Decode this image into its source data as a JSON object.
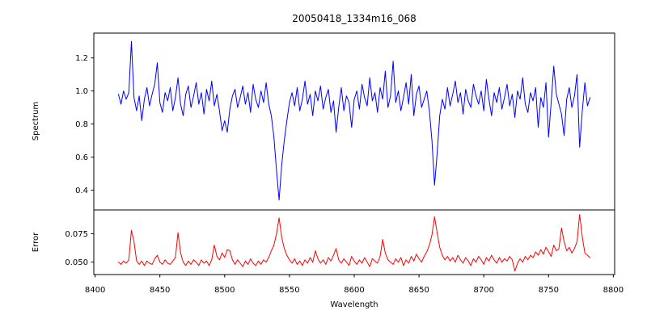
{
  "chart_data": {
    "type": "line",
    "title": "20050418_1334m16_068",
    "xlabel": "Wavelength",
    "background_color": "#ffffff",
    "axis_color": "#000000",
    "x_start": 8418,
    "x_step": 2,
    "n_points": 183,
    "xlim": [
      8399,
      8801
    ],
    "x_ticks": [
      8400,
      8450,
      8500,
      8550,
      8600,
      8650,
      8700,
      8750,
      8800
    ],
    "grid": false,
    "legend": "none",
    "panels": [
      {
        "name": "spectrum",
        "ylabel": "Spectrum",
        "color": "#0000ff",
        "ylim": [
          0.28,
          1.35
        ],
        "y_ticks": [
          0.4,
          0.6,
          0.8,
          1.0,
          1.2
        ],
        "y_tick_labels": [
          "0.4",
          "0.6",
          "0.8",
          "1.0",
          "1.2"
        ],
        "values": [
          0.98,
          0.92,
          1.0,
          0.95,
          0.99,
          1.3,
          0.96,
          0.88,
          0.97,
          0.82,
          0.95,
          1.02,
          0.91,
          0.98,
          1.04,
          1.17,
          0.93,
          0.87,
          0.99,
          0.94,
          1.02,
          0.88,
          0.96,
          1.08,
          0.92,
          0.85,
          0.98,
          1.03,
          0.9,
          0.97,
          1.05,
          0.92,
          0.99,
          0.86,
          1.01,
          0.94,
          1.06,
          0.91,
          0.98,
          0.88,
          0.76,
          0.82,
          0.75,
          0.89,
          0.97,
          1.01,
          0.9,
          0.96,
          1.03,
          0.92,
          0.99,
          0.87,
          1.04,
          0.95,
          0.9,
          1.0,
          0.93,
          1.05,
          0.92,
          0.85,
          0.72,
          0.52,
          0.34,
          0.55,
          0.7,
          0.82,
          0.93,
          0.99,
          0.91,
          1.02,
          0.88,
          0.95,
          1.06,
          0.92,
          0.98,
          0.85,
          1.0,
          0.94,
          1.03,
          0.89,
          0.96,
          1.01,
          0.87,
          0.94,
          0.75,
          0.9,
          1.02,
          0.88,
          0.97,
          0.93,
          0.78,
          0.95,
          1.0,
          0.89,
          1.04,
          0.96,
          0.91,
          1.08,
          0.94,
          0.99,
          0.87,
          1.02,
          0.95,
          1.12,
          0.9,
          0.97,
          1.18,
          0.93,
          1.0,
          0.88,
          0.96,
          1.05,
          0.92,
          1.1,
          0.85,
          0.98,
          1.03,
          0.9,
          0.95,
          1.0,
          0.88,
          0.7,
          0.43,
          0.62,
          0.85,
          0.95,
          0.89,
          1.02,
          0.91,
          0.98,
          1.06,
          0.93,
          0.99,
          0.86,
          1.01,
          0.94,
          0.9,
          1.04,
          0.97,
          0.92,
          1.0,
          0.88,
          1.07,
          0.95,
          0.85,
          0.99,
          0.93,
          1.02,
          0.89,
          0.96,
          1.04,
          0.91,
          0.98,
          0.84,
          1.0,
          0.95,
          1.08,
          0.92,
          0.87,
          0.99,
          0.94,
          1.02,
          0.78,
          0.96,
          0.9,
          1.05,
          0.72,
          0.93,
          1.15,
          0.98,
          0.92,
          0.86,
          0.73,
          0.95,
          1.02,
          0.9,
          0.97,
          1.1,
          0.66,
          0.88,
          1.05,
          0.91,
          0.96
        ]
      },
      {
        "name": "error",
        "ylabel": "Error",
        "color": "#ff0000",
        "ylim": [
          0.039,
          0.096
        ],
        "y_ticks": [
          0.05,
          0.075
        ],
        "y_tick_labels": [
          "0.050",
          "0.075"
        ],
        "values": [
          0.05,
          0.048,
          0.051,
          0.049,
          0.052,
          0.078,
          0.068,
          0.051,
          0.048,
          0.051,
          0.047,
          0.051,
          0.049,
          0.048,
          0.053,
          0.056,
          0.05,
          0.048,
          0.052,
          0.049,
          0.048,
          0.051,
          0.054,
          0.076,
          0.058,
          0.05,
          0.047,
          0.051,
          0.048,
          0.052,
          0.05,
          0.047,
          0.052,
          0.049,
          0.051,
          0.047,
          0.052,
          0.065,
          0.055,
          0.052,
          0.058,
          0.054,
          0.061,
          0.06,
          0.052,
          0.048,
          0.052,
          0.049,
          0.046,
          0.051,
          0.048,
          0.053,
          0.049,
          0.047,
          0.051,
          0.048,
          0.052,
          0.05,
          0.054,
          0.06,
          0.065,
          0.075,
          0.089,
          0.072,
          0.062,
          0.056,
          0.052,
          0.049,
          0.053,
          0.048,
          0.051,
          0.047,
          0.052,
          0.049,
          0.054,
          0.05,
          0.06,
          0.053,
          0.049,
          0.052,
          0.048,
          0.054,
          0.051,
          0.056,
          0.062,
          0.052,
          0.049,
          0.053,
          0.05,
          0.047,
          0.055,
          0.051,
          0.048,
          0.052,
          0.049,
          0.054,
          0.05,
          0.046,
          0.053,
          0.051,
          0.049,
          0.055,
          0.07,
          0.058,
          0.052,
          0.05,
          0.048,
          0.053,
          0.05,
          0.054,
          0.047,
          0.052,
          0.049,
          0.055,
          0.051,
          0.057,
          0.053,
          0.05,
          0.055,
          0.059,
          0.065,
          0.074,
          0.09,
          0.076,
          0.063,
          0.056,
          0.052,
          0.055,
          0.051,
          0.054,
          0.05,
          0.056,
          0.052,
          0.049,
          0.054,
          0.051,
          0.047,
          0.053,
          0.05,
          0.055,
          0.052,
          0.048,
          0.054,
          0.051,
          0.056,
          0.052,
          0.049,
          0.054,
          0.05,
          0.053,
          0.051,
          0.055,
          0.052,
          0.042,
          0.049,
          0.053,
          0.05,
          0.055,
          0.052,
          0.056,
          0.054,
          0.059,
          0.056,
          0.061,
          0.057,
          0.063,
          0.059,
          0.055,
          0.065,
          0.06,
          0.062,
          0.08,
          0.068,
          0.06,
          0.063,
          0.058,
          0.062,
          0.068,
          0.092,
          0.072,
          0.058,
          0.056,
          0.054
        ]
      }
    ]
  }
}
